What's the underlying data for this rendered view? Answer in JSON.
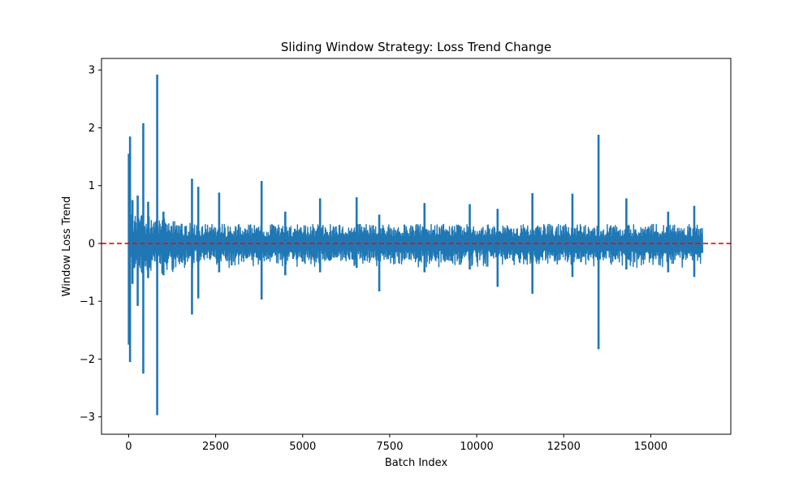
{
  "chart_data": {
    "type": "line",
    "title": "Sliding Window Strategy: Loss Trend Change",
    "xlabel": "Batch Index",
    "ylabel": "Window Loss Trend",
    "xlim": [
      -780,
      17300
    ],
    "ylim": [
      -3.3,
      3.2
    ],
    "xticks": [
      0,
      2500,
      5000,
      7500,
      10000,
      12500,
      15000
    ],
    "xtick_labels": [
      "0",
      "2500",
      "5000",
      "7500",
      "10000",
      "12500",
      "15000"
    ],
    "yticks": [
      -3,
      -2,
      -1,
      0,
      1,
      2,
      3
    ],
    "ytick_labels": [
      "−3",
      "−2",
      "−1",
      "0",
      "1",
      "2",
      "3"
    ],
    "grid": false,
    "legend": "none",
    "series": [
      {
        "color": "#1f77b4",
        "x_range": [
          0,
          16500
        ],
        "point_count": 16500,
        "typical_band": [
          -0.3,
          0.3
        ],
        "spikes": [
          {
            "x": 5,
            "min": -1.75,
            "max": 1.55
          },
          {
            "x": 40,
            "min": -2.05,
            "max": 1.85
          },
          {
            "x": 110,
            "min": -0.7,
            "max": 0.75
          },
          {
            "x": 260,
            "min": -1.08,
            "max": 0.83
          },
          {
            "x": 420,
            "min": -2.25,
            "max": 2.08
          },
          {
            "x": 560,
            "min": -0.6,
            "max": 0.72
          },
          {
            "x": 820,
            "min": -2.97,
            "max": 2.92
          },
          {
            "x": 1000,
            "min": -0.55,
            "max": 0.55
          },
          {
            "x": 1820,
            "min": -1.23,
            "max": 1.12
          },
          {
            "x": 2000,
            "min": -0.95,
            "max": 0.98
          },
          {
            "x": 2600,
            "min": -0.5,
            "max": 0.88
          },
          {
            "x": 3820,
            "min": -0.97,
            "max": 1.08
          },
          {
            "x": 4500,
            "min": -0.55,
            "max": 0.55
          },
          {
            "x": 5500,
            "min": -0.5,
            "max": 0.78
          },
          {
            "x": 6550,
            "min": -0.42,
            "max": 0.8
          },
          {
            "x": 7200,
            "min": -0.83,
            "max": 0.5
          },
          {
            "x": 8500,
            "min": -0.5,
            "max": 0.7
          },
          {
            "x": 9800,
            "min": -0.45,
            "max": 0.68
          },
          {
            "x": 10600,
            "min": -0.75,
            "max": 0.6
          },
          {
            "x": 11600,
            "min": -0.87,
            "max": 0.87
          },
          {
            "x": 12750,
            "min": -0.58,
            "max": 0.86
          },
          {
            "x": 13500,
            "min": -1.83,
            "max": 1.88
          },
          {
            "x": 14300,
            "min": -0.45,
            "max": 0.78
          },
          {
            "x": 15500,
            "min": -0.5,
            "max": 0.55
          },
          {
            "x": 16250,
            "min": -0.58,
            "max": 0.65
          }
        ]
      }
    ],
    "reference_line": {
      "y": 0,
      "color": "#ff0000",
      "style": "dashed"
    }
  }
}
